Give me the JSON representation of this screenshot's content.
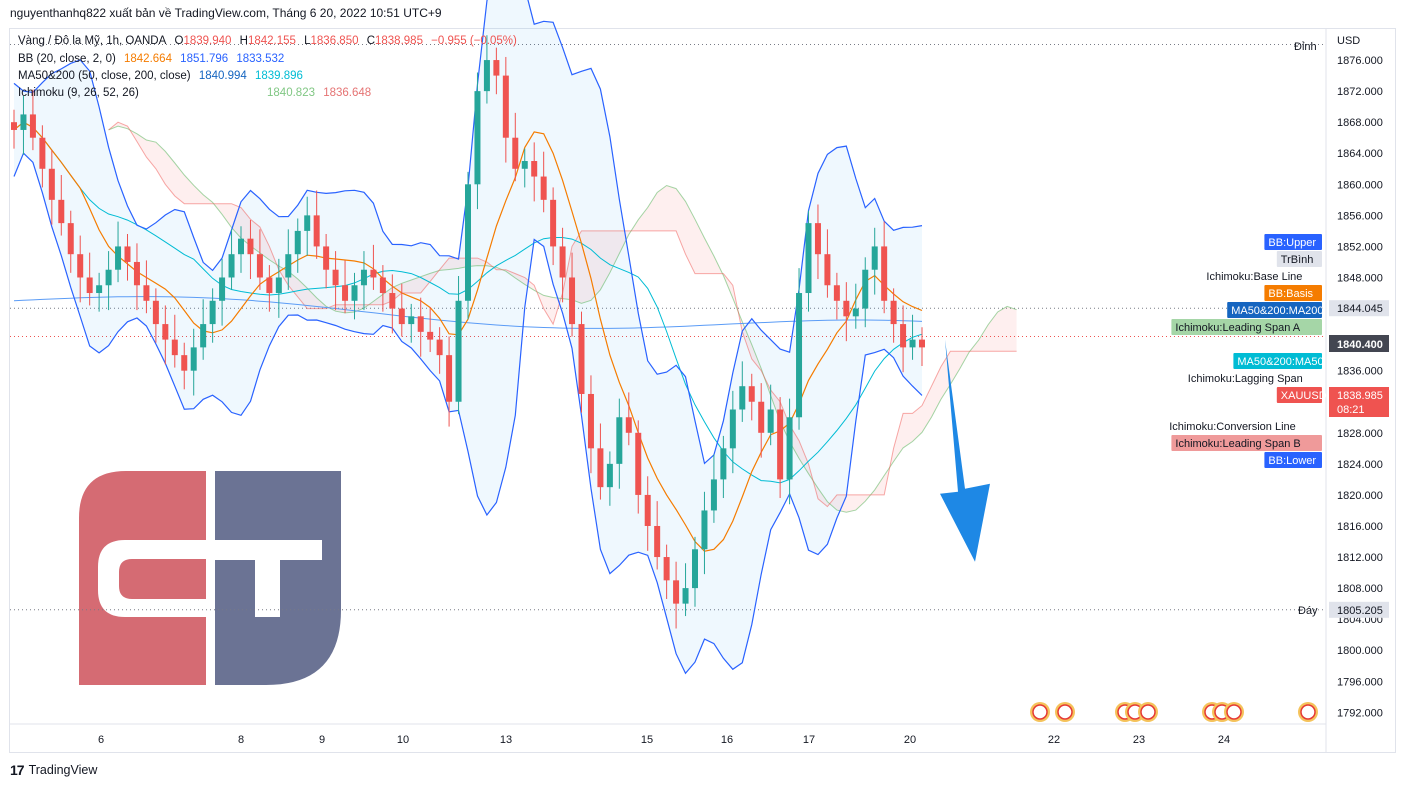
{
  "header": {
    "publisher_line": "nguyenthanhq822 xuất bản về TradingView.com, Tháng 6 20, 2022 10:51 UTC+9"
  },
  "legend": {
    "symbol": "Vàng / Đô la Mỹ, 1h, OANDA",
    "ohlc": {
      "o_label": "O",
      "o": "1839.940",
      "h_label": "H",
      "h": "1842.155",
      "l_label": "L",
      "l": "1836.850",
      "c_label": "C",
      "c": "1838.985",
      "change": "−0.955 (−0.05%)"
    },
    "bb": {
      "label": "BB (20, close, 2, 0)",
      "basis": "1842.664",
      "upper": "1851.796",
      "lower": "1833.532"
    },
    "ma": {
      "label": "MA50&200 (50, close, 200, close)",
      "ma200": "1840.994",
      "ma50": "1839.896"
    },
    "ichimoku": {
      "label": "Ichimoku (9, 26, 52, 26)",
      "span_a": "1840.823",
      "span_b": "1836.648"
    }
  },
  "footer": {
    "brand": "TradingView",
    "logo": "17"
  },
  "colors": {
    "up": "#26a69a",
    "down": "#ef5350",
    "bb_basis": "#f57c00",
    "bb_band": "#2962ff",
    "ma200": "#5b9cf6",
    "ma50": "#00bcd4",
    "span_a": "#4caf50",
    "span_b": "#ef5350",
    "arrow": "#1e88e5",
    "logo_red": "#d56b73",
    "logo_blue": "#6b7394"
  },
  "chart_data": {
    "type": "candlestick",
    "symbol": "XAUUSD",
    "timeframe": "1h",
    "y_axis": {
      "unit": "USD",
      "range": [
        1790.5,
        1880
      ],
      "ticks": [
        1792,
        1796,
        1800,
        1804,
        1808,
        1812,
        1816,
        1820,
        1824,
        1828,
        1832,
        1836,
        1840,
        1844,
        1848,
        1852,
        1856,
        1860,
        1864,
        1868,
        1872,
        1876
      ]
    },
    "x_ticks": [
      "6",
      "8",
      "9",
      "10",
      "13",
      "15",
      "16",
      "17",
      "20",
      "22",
      "23",
      "24"
    ],
    "price_levels": [
      {
        "label": "Đỉnh",
        "value": 1878
      },
      {
        "label": "TrBình",
        "value": 1844.045
      },
      {
        "label": "Đáy",
        "value": 1805.205
      }
    ],
    "price_tags": [
      {
        "label": "BB:Upper",
        "value": "1851.796",
        "color": "#2962ff"
      },
      {
        "label": "TrBình",
        "value": "1844.045",
        "color": "#e0e3eb"
      },
      {
        "label": "Ichimoku:Base Line",
        "value": "",
        "color": ""
      },
      {
        "label": "BB:Basis",
        "value": "",
        "color": "#f57c00"
      },
      {
        "label": "MA50&200:MA200",
        "value": "",
        "color": "#1565c0"
      },
      {
        "label": "Ichimoku:Leading Span A",
        "value": "1840.400",
        "color": "#a5d6a7"
      },
      {
        "label": "MA50&200:MA50",
        "value": "",
        "color": "#00bcd4"
      },
      {
        "label": "Ichimoku:Lagging Span",
        "value": "",
        "color": ""
      },
      {
        "label": "XAUUSD",
        "value": "1838.985",
        "color": "#ef5350"
      },
      {
        "label": "Ichimoku:Conversion Line",
        "value": "",
        "color": ""
      },
      {
        "label": "Ichimoku:Leading Span B",
        "value": "",
        "color": "#ef9a9a"
      },
      {
        "label": "BB:Lower",
        "value": "",
        "color": "#2962ff"
      }
    ],
    "countdown": "08:21",
    "close_series": [
      1867,
      1869,
      1866,
      1862,
      1858,
      1855,
      1851,
      1848,
      1846,
      1847,
      1849,
      1852,
      1850,
      1847,
      1845,
      1842,
      1840,
      1838,
      1836,
      1839,
      1842,
      1845,
      1848,
      1851,
      1853,
      1851,
      1848,
      1846,
      1848,
      1851,
      1854,
      1856,
      1852,
      1849,
      1847,
      1845,
      1847,
      1849,
      1848,
      1846,
      1844,
      1842,
      1843,
      1841,
      1840,
      1838,
      1832,
      1845,
      1860,
      1872,
      1876,
      1874,
      1866,
      1862,
      1863,
      1861,
      1858,
      1852,
      1848,
      1842,
      1833,
      1826,
      1821,
      1824,
      1830,
      1828,
      1820,
      1816,
      1812,
      1809,
      1806,
      1808,
      1813,
      1818,
      1822,
      1826,
      1831,
      1834,
      1832,
      1828,
      1831,
      1822,
      1830,
      1846,
      1855,
      1851,
      1847,
      1845,
      1843,
      1844,
      1849,
      1852,
      1845,
      1842,
      1839,
      1840,
      1839
    ],
    "series_names": [
      "BB Upper",
      "BB Basis",
      "BB Lower",
      "MA200",
      "MA50",
      "Ichimoku Leading Span A",
      "Ichimoku Leading Span B"
    ],
    "annotation": {
      "type": "down-arrow",
      "from_price": 1840,
      "to_price": 1815
    }
  }
}
